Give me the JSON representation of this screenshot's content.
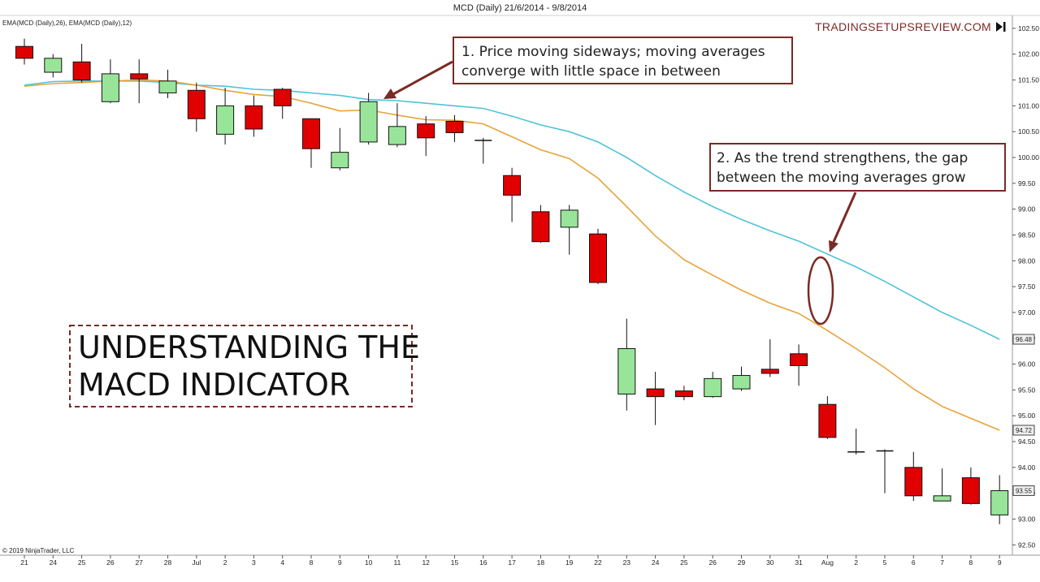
{
  "header": {
    "title": "MCD (Daily)  21/6/2014 - 9/8/2014",
    "indicator_label": "EMA(MCD (Daily),26), EMA(MCD (Daily),12)",
    "brand": "TRADINGSETUPSREVIEW.COM",
    "brand_icon": "skip-to-end-icon",
    "copyright": "© 2019 NinjaTrader, LLC"
  },
  "annotations": {
    "note1": [
      "1. Price moving sideways; moving averages",
      "converge with little space in between"
    ],
    "note2": [
      "2. As the trend strengthens, the gap",
      "between the moving averages grow"
    ],
    "main_title": [
      "UNDERSTANDING THE",
      "MACD INDICATOR"
    ]
  },
  "colors": {
    "bull": "#98e59a",
    "bear": "#e00000",
    "ema26": "#4ec3d8",
    "ema12": "#e8a33a",
    "annotation": "#7b2a25"
  },
  "chart_data": {
    "type": "candlestick",
    "x_tick_labels": [
      "21",
      "24",
      "25",
      "26",
      "27",
      "28",
      "Jul",
      "2",
      "3",
      "4",
      "8",
      "9",
      "10",
      "11",
      "12",
      "15",
      "16",
      "17",
      "18",
      "19",
      "22",
      "23",
      "24",
      "25",
      "26",
      "29",
      "30",
      "31",
      "Aug",
      "2",
      "5",
      "6",
      "7",
      "8",
      "9"
    ],
    "candles": [
      {
        "o": 102.15,
        "h": 102.3,
        "l": 101.8,
        "c": 101.92
      },
      {
        "o": 101.65,
        "h": 102.0,
        "l": 101.55,
        "c": 101.92
      },
      {
        "o": 101.85,
        "h": 102.2,
        "l": 101.45,
        "c": 101.5
      },
      {
        "o": 101.08,
        "h": 101.9,
        "l": 101.05,
        "c": 101.62
      },
      {
        "o": 101.62,
        "h": 101.9,
        "l": 101.05,
        "c": 101.52
      },
      {
        "o": 101.25,
        "h": 101.7,
        "l": 101.15,
        "c": 101.48
      },
      {
        "o": 101.3,
        "h": 101.45,
        "l": 100.5,
        "c": 100.75
      },
      {
        "o": 100.45,
        "h": 101.35,
        "l": 100.25,
        "c": 101.0
      },
      {
        "o": 101.0,
        "h": 101.2,
        "l": 100.4,
        "c": 100.55
      },
      {
        "o": 101.32,
        "h": 101.35,
        "l": 100.75,
        "c": 101.0
      },
      {
        "o": 100.75,
        "h": 100.75,
        "l": 99.8,
        "c": 100.17
      },
      {
        "o": 99.8,
        "h": 100.57,
        "l": 99.75,
        "c": 100.1
      },
      {
        "o": 100.3,
        "h": 101.25,
        "l": 100.25,
        "c": 101.08
      },
      {
        "o": 100.25,
        "h": 101.05,
        "l": 100.2,
        "c": 100.6
      },
      {
        "o": 100.65,
        "h": 100.8,
        "l": 100.03,
        "c": 100.38
      },
      {
        "o": 100.7,
        "h": 100.82,
        "l": 100.3,
        "c": 100.48
      },
      {
        "o": 100.33,
        "h": 100.38,
        "l": 99.88,
        "c": 100.33
      },
      {
        "o": 99.65,
        "h": 99.8,
        "l": 98.75,
        "c": 99.27
      },
      {
        "o": 98.95,
        "h": 99.08,
        "l": 98.35,
        "c": 98.37
      },
      {
        "o": 98.65,
        "h": 99.08,
        "l": 98.12,
        "c": 98.98
      },
      {
        "o": 98.52,
        "h": 98.62,
        "l": 97.55,
        "c": 97.58
      },
      {
        "o": 95.42,
        "h": 96.88,
        "l": 95.1,
        "c": 96.3
      },
      {
        "o": 95.52,
        "h": 95.85,
        "l": 94.82,
        "c": 95.37
      },
      {
        "o": 95.48,
        "h": 95.58,
        "l": 95.3,
        "c": 95.37
      },
      {
        "o": 95.37,
        "h": 95.85,
        "l": 95.35,
        "c": 95.72
      },
      {
        "o": 95.52,
        "h": 95.95,
        "l": 95.48,
        "c": 95.78
      },
      {
        "o": 95.9,
        "h": 96.48,
        "l": 95.75,
        "c": 95.82
      },
      {
        "o": 96.2,
        "h": 96.38,
        "l": 95.58,
        "c": 95.97
      },
      {
        "o": 95.22,
        "h": 95.38,
        "l": 94.55,
        "c": 94.58
      },
      {
        "o": 94.3,
        "h": 94.75,
        "l": 94.25,
        "c": 94.3
      },
      {
        "o": 94.32,
        "h": 94.35,
        "l": 93.5,
        "c": 94.32
      },
      {
        "o": 94.0,
        "h": 94.3,
        "l": 93.35,
        "c": 93.45
      },
      {
        "o": 93.35,
        "h": 93.98,
        "l": 93.35,
        "c": 93.45
      },
      {
        "o": 93.8,
        "h": 94.0,
        "l": 93.28,
        "c": 93.3
      },
      {
        "o": 93.08,
        "h": 93.85,
        "l": 92.9,
        "c": 93.55
      }
    ],
    "series": [
      {
        "name": "EMA(MCD (Daily),26)",
        "values": [
          101.4,
          101.47,
          101.48,
          101.48,
          101.48,
          101.45,
          101.4,
          101.38,
          101.32,
          101.3,
          101.25,
          101.2,
          101.12,
          101.1,
          101.05,
          101.0,
          100.95,
          100.8,
          100.63,
          100.5,
          100.3,
          100.0,
          99.65,
          99.33,
          99.05,
          98.8,
          98.58,
          98.38,
          98.13,
          97.88,
          97.6,
          97.3,
          97.0,
          96.75,
          96.48
        ]
      },
      {
        "name": "EMA(MCD (Daily),12)",
        "values": [
          101.38,
          101.43,
          101.45,
          101.48,
          101.5,
          101.48,
          101.4,
          101.3,
          101.22,
          101.18,
          101.05,
          100.9,
          100.92,
          100.82,
          100.73,
          100.72,
          100.65,
          100.4,
          100.15,
          99.98,
          99.6,
          99.05,
          98.48,
          98.02,
          97.72,
          97.43,
          97.18,
          96.98,
          96.65,
          96.3,
          95.93,
          95.52,
          95.18,
          94.95,
          94.72
        ]
      }
    ],
    "y_ticks": [
      102.5,
      102.0,
      101.5,
      101.0,
      100.5,
      100.0,
      99.5,
      99.0,
      98.5,
      98.0,
      97.5,
      97.0,
      96.5,
      96.0,
      95.5,
      95.0,
      94.5,
      94.0,
      93.5,
      93.0,
      92.5
    ],
    "y_tick_labels": [
      "102.50",
      "102.00",
      "101.50",
      "101.00",
      "100.50",
      "100.00",
      "99.50",
      "99.00",
      "98.50",
      "98.00",
      "97.50",
      "97.00",
      "96.50",
      "96.00",
      "95.50",
      "95.00",
      "94.50",
      "94.00",
      "93.50",
      "93.00",
      "92.50"
    ],
    "last_value_tags": [
      "96.48",
      "94.72",
      "93.55"
    ],
    "ylim": [
      92.3,
      102.75
    ],
    "grid": false,
    "legend": "top-left"
  }
}
